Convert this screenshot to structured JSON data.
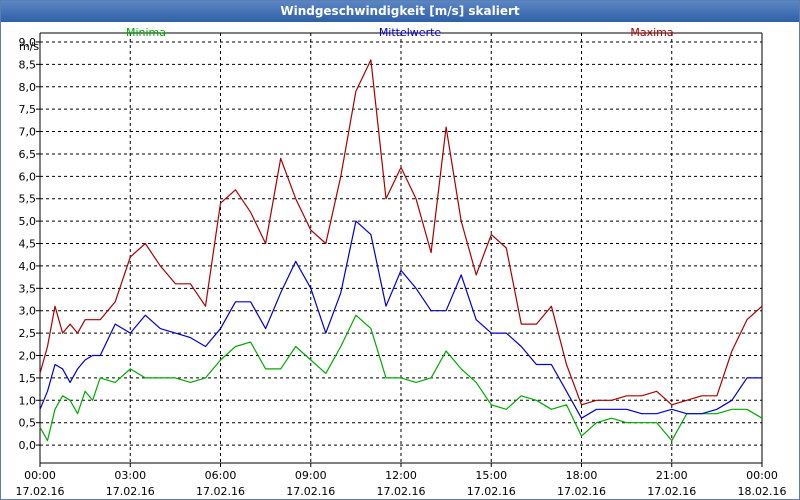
{
  "window": {
    "title": "Windgeschwindigkeit [m/s] skaliert"
  },
  "chart_data": {
    "type": "line",
    "title": "Windgeschwindigkeit [m/s] skaliert",
    "ylabel": "m/s",
    "xlabel": "",
    "ylim": [
      -0.4,
      9.2
    ],
    "xlim": [
      0,
      24
    ],
    "y_ticks": [
      "0,0",
      "0,5",
      "1,0",
      "1,5",
      "2,0",
      "2,5",
      "3,0",
      "3,5",
      "4,0",
      "4,5",
      "5,0",
      "5,5",
      "6,0",
      "6,5",
      "7,0",
      "7,5",
      "8,0",
      "8,5",
      "9,0"
    ],
    "x_ticks": [
      {
        "time": "00:00",
        "date": "17.02.16"
      },
      {
        "time": "03:00",
        "date": "17.02.16"
      },
      {
        "time": "06:00",
        "date": "17.02.16"
      },
      {
        "time": "09:00",
        "date": "17.02.16"
      },
      {
        "time": "12:00",
        "date": "17.02.16"
      },
      {
        "time": "15:00",
        "date": "17.02.16"
      },
      {
        "time": "18:00",
        "date": "17.02.16"
      },
      {
        "time": "21:00",
        "date": "17.02.16"
      },
      {
        "time": "00:00",
        "date": "18.02.16"
      }
    ],
    "grid": true,
    "series": [
      {
        "name": "Minima",
        "color": "#00aa00",
        "x": [
          0,
          0.25,
          0.5,
          0.75,
          1,
          1.25,
          1.5,
          1.75,
          2,
          2.5,
          3,
          3.5,
          4,
          4.5,
          5,
          5.5,
          6,
          6.5,
          7,
          7.5,
          8,
          8.5,
          9,
          9.5,
          10,
          10.5,
          11,
          11.5,
          12,
          12.5,
          13,
          13.5,
          14,
          14.5,
          15,
          15.5,
          16,
          16.5,
          17,
          17.5,
          18,
          18.5,
          19,
          19.5,
          20,
          20.5,
          21,
          21.5,
          22,
          22.5,
          23,
          23.5,
          24
        ],
        "values": [
          0.4,
          0.1,
          0.8,
          1.1,
          1,
          0.7,
          1.2,
          1,
          1.5,
          1.4,
          1.7,
          1.5,
          1.5,
          1.5,
          1.4,
          1.5,
          1.9,
          2.2,
          2.3,
          1.7,
          1.7,
          2.2,
          1.9,
          1.6,
          2.2,
          2.9,
          2.6,
          1.5,
          1.5,
          1.4,
          1.5,
          2.1,
          1.7,
          1.4,
          0.9,
          0.8,
          1.1,
          1,
          0.8,
          0.9,
          0.2,
          0.5,
          0.6,
          0.5,
          0.5,
          0.5,
          0.1,
          0.7,
          0.7,
          0.7,
          0.8,
          0.8,
          0.6
        ]
      },
      {
        "name": "Mittelwerte",
        "color": "#0000cc",
        "x": [
          0,
          0.25,
          0.5,
          0.75,
          1,
          1.25,
          1.5,
          1.75,
          2,
          2.5,
          3,
          3.5,
          4,
          4.5,
          5,
          5.5,
          6,
          6.5,
          7,
          7.5,
          8,
          8.5,
          9,
          9.5,
          10,
          10.5,
          11,
          11.5,
          12,
          12.5,
          13,
          13.5,
          14,
          14.5,
          15,
          15.5,
          16,
          16.5,
          17,
          17.5,
          18,
          18.5,
          19,
          19.5,
          20,
          20.5,
          21,
          21.5,
          22,
          22.5,
          23,
          23.5,
          24
        ],
        "values": [
          0.8,
          1.2,
          1.8,
          1.7,
          1.4,
          1.7,
          1.9,
          2,
          2,
          2.7,
          2.5,
          2.9,
          2.6,
          2.5,
          2.4,
          2.2,
          2.6,
          3.2,
          3.2,
          2.6,
          3.4,
          4.1,
          3.5,
          2.5,
          3.4,
          5,
          4.7,
          3.1,
          3.9,
          3.5,
          3,
          3,
          3.8,
          2.8,
          2.5,
          2.5,
          2.2,
          1.8,
          1.8,
          1.2,
          0.6,
          0.8,
          0.8,
          0.8,
          0.7,
          0.7,
          0.8,
          0.7,
          0.7,
          0.8,
          1,
          1.5,
          1.5
        ]
      },
      {
        "name": "Maxima",
        "color": "#aa0000",
        "x": [
          0,
          0.25,
          0.5,
          0.75,
          1,
          1.25,
          1.5,
          1.75,
          2,
          2.5,
          3,
          3.5,
          4,
          4.5,
          5,
          5.5,
          6,
          6.5,
          7,
          7.5,
          8,
          8.5,
          9,
          9.5,
          10,
          10.5,
          11,
          11.5,
          12,
          12.5,
          13,
          13.5,
          14,
          14.5,
          15,
          15.5,
          16,
          16.5,
          17,
          17.5,
          18,
          18.5,
          19,
          19.5,
          20,
          20.5,
          21,
          21.5,
          22,
          22.5,
          23,
          23.5,
          24
        ],
        "values": [
          1.6,
          2.2,
          3.1,
          2.5,
          2.7,
          2.5,
          2.8,
          2.8,
          2.8,
          3.2,
          4.2,
          4.5,
          4,
          3.6,
          3.6,
          3.1,
          5.4,
          5.7,
          5.2,
          4.5,
          6.4,
          5.5,
          4.8,
          4.5,
          6,
          7.9,
          8.6,
          5.5,
          6.2,
          5.5,
          4.3,
          7.1,
          5,
          3.8,
          4.7,
          4.4,
          2.7,
          2.7,
          3.1,
          1.8,
          0.9,
          1,
          1,
          1.1,
          1.1,
          1.2,
          0.9,
          1,
          1.1,
          1.1,
          2.1,
          2.8,
          3.1
        ]
      }
    ]
  }
}
